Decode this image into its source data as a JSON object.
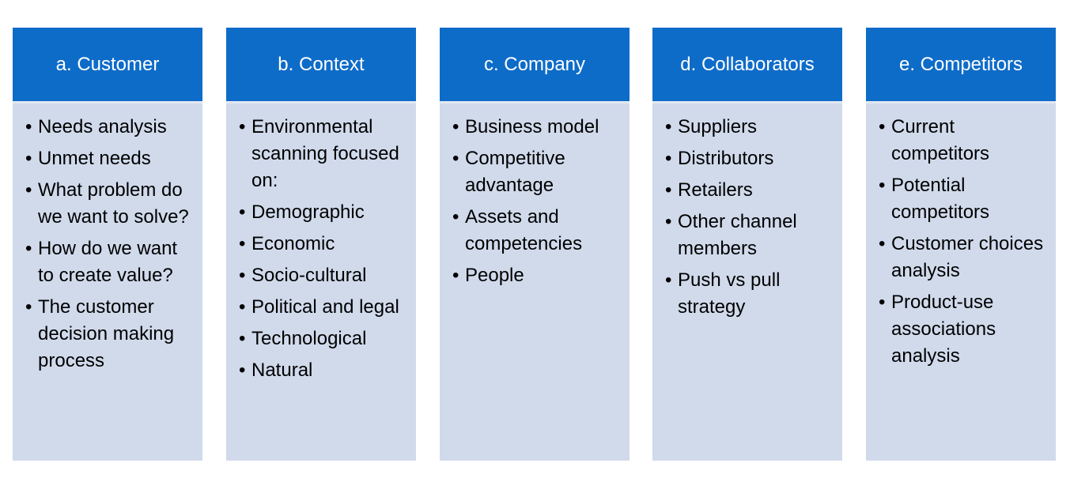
{
  "colors": {
    "header": "#0E6CC9",
    "body": "#D0DAEB",
    "separator": "#E2E7F2"
  },
  "columns": [
    {
      "title": "a. Customer",
      "items": [
        "Needs analysis",
        "Unmet needs",
        "What problem do we want to solve?",
        "How do we want to create value?",
        "The customer decision making process"
      ]
    },
    {
      "title": "b. Context",
      "items": [
        "Environmental scanning focused on:",
        "Demographic",
        "Economic",
        "Socio-cultural",
        "Political and legal",
        "Technological",
        "Natural"
      ]
    },
    {
      "title": "c. Company",
      "items": [
        "Business model",
        "Competitive advantage",
        "Assets and competencies",
        "People"
      ]
    },
    {
      "title": "d. Collaborators",
      "items": [
        "Suppliers",
        "Distributors",
        "Retailers",
        "Other channel members",
        "Push vs pull strategy"
      ]
    },
    {
      "title": "e. Competitors",
      "items": [
        "Current competitors",
        "Potential competitors",
        "Customer choices analysis",
        "Product-use associations analysis"
      ]
    }
  ]
}
